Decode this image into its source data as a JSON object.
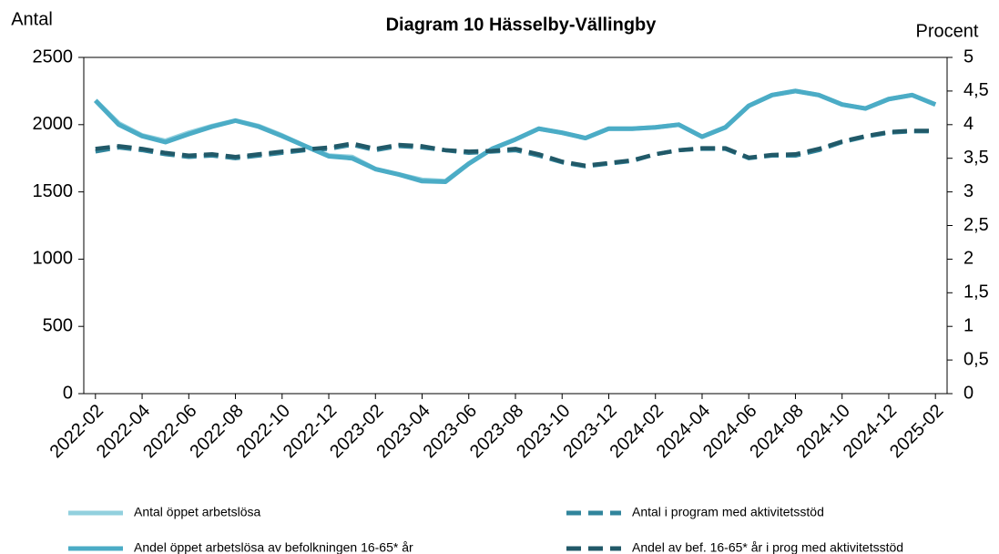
{
  "chart_data": {
    "type": "line",
    "title": "Diagram 10 Hässelby-Vällingby",
    "y_label": "Antal",
    "y2_label": "Procent",
    "categories": [
      "2022-02",
      null,
      "2022-04",
      null,
      "2022-06",
      null,
      "2022-08",
      null,
      "2022-10",
      null,
      "2022-12",
      null,
      "2023-02",
      null,
      "2023-04",
      null,
      "2023-06",
      null,
      "2023-08",
      null,
      "2023-10",
      null,
      "2023-12",
      null,
      "2024-02",
      null,
      "2024-04",
      null,
      "2024-06",
      null,
      "2024-08",
      null,
      "2024-10",
      null,
      "2024-12",
      null,
      "2025-02"
    ],
    "ylim": [
      0,
      2500
    ],
    "yticks": [
      0,
      500,
      1000,
      1500,
      2000,
      2500
    ],
    "y2lim": [
      0,
      5
    ],
    "y2ticks": [
      0,
      {
        "value": 0.5,
        "label": "0,5"
      },
      1,
      {
        "value": 1.5,
        "label": "1,5"
      },
      2,
      {
        "value": 2.5,
        "label": "2,5"
      },
      3,
      {
        "value": 3.5,
        "label": "3,5"
      },
      4,
      {
        "value": 4.5,
        "label": "4,5"
      },
      5
    ],
    "series": [
      {
        "name": "Antal öppet arbetslösa",
        "color": "#92d0de",
        "dashed": false,
        "values": [
          2180,
          2010,
          1920,
          1880,
          1940,
          1990,
          2030,
          1990,
          1920,
          1840,
          1770,
          1760,
          1670,
          1630,
          1590,
          1580,
          1710,
          1820,
          1890,
          1970,
          1940,
          1900,
          1970,
          1970,
          1980,
          2000,
          1910,
          1980,
          2140,
          2220,
          2250,
          2220,
          2150,
          2120,
          2190,
          2220,
          2150
        ]
      },
      {
        "name": "Antal i program med aktivitetsstöd",
        "color": "#31859c",
        "dashed": true,
        "values": [
          1800,
          1830,
          1810,
          1780,
          1760,
          1770,
          1750,
          1770,
          1790,
          1810,
          1820,
          1850,
          1810,
          1840,
          1830,
          1810,
          1790,
          1800,
          1810,
          1770,
          1720,
          1690,
          1710,
          1730,
          1780,
          1810,
          1820,
          1820,
          1750,
          1770,
          1770,
          1810,
          1870,
          1910,
          1940,
          1950,
          1950
        ]
      },
      {
        "name": "Andel öppet arbetslösa av befolkningen 16-65* år",
        "color": "#4bacc6",
        "dashed": false,
        "axis": "y2",
        "values": [
          4.36,
          4.0,
          3.83,
          3.74,
          3.86,
          3.97,
          4.06,
          3.97,
          3.83,
          3.68,
          3.53,
          3.5,
          3.34,
          3.26,
          3.16,
          3.15,
          3.42,
          3.64,
          3.78,
          3.94,
          3.88,
          3.8,
          3.94,
          3.94,
          3.96,
          4.0,
          3.82,
          3.96,
          4.28,
          4.44,
          4.5,
          4.44,
          4.3,
          4.24,
          4.38,
          4.44,
          4.3
        ]
      },
      {
        "name": "Andel av bef. 16-65* år i prog med aktivitetsstöd",
        "color": "#215968",
        "dashed": true,
        "axis": "y2",
        "values": [
          3.64,
          3.68,
          3.64,
          3.58,
          3.54,
          3.56,
          3.52,
          3.56,
          3.6,
          3.63,
          3.66,
          3.72,
          3.64,
          3.7,
          3.68,
          3.62,
          3.6,
          3.61,
          3.64,
          3.56,
          3.45,
          3.39,
          3.43,
          3.47,
          3.56,
          3.62,
          3.65,
          3.65,
          3.51,
          3.55,
          3.56,
          3.64,
          3.75,
          3.83,
          3.89,
          3.91,
          3.91
        ]
      }
    ]
  }
}
